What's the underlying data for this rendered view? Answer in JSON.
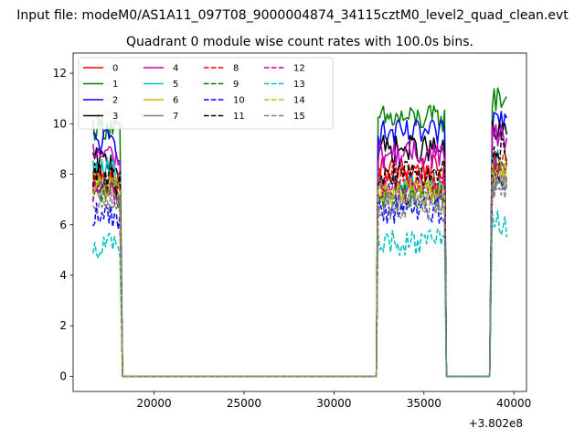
{
  "chart_data": {
    "type": "line",
    "suptitle": "Input file: modeM0/AS1A11_097T08_9000004874_34115cztM0_level2_quad_clean.evt",
    "title": "Quadrant 0 module wise count rates with 100.0s bins.",
    "xlabel": "",
    "ylabel": "",
    "x_offset_text": "+3.802e8",
    "xlim": [
      15500,
      40700
    ],
    "ylim": [
      -0.6,
      12.8
    ],
    "xticks": [
      20000,
      25000,
      30000,
      35000,
      40000
    ],
    "xtick_labels": [
      "20000",
      "25000",
      "30000",
      "35000",
      "40000"
    ],
    "yticks": [
      0,
      2,
      4,
      6,
      8,
      10,
      12
    ],
    "ytick_labels": [
      "0",
      "2",
      "4",
      "6",
      "8",
      "10",
      "12"
    ],
    "grid": false,
    "legend_placement": "upper-left",
    "legend_columns": 4,
    "x_segments": [
      [
        16600,
        18150
      ],
      [
        18250,
        32350
      ],
      [
        32450,
        36150
      ],
      [
        36250,
        38700
      ],
      [
        38800,
        39600
      ]
    ],
    "gap_levels": [
      0,
      0,
      0,
      0,
      0
    ],
    "series": [
      {
        "name": "0",
        "color": "#ff0000",
        "dash": "solid",
        "levels": [
          7.9,
          8.2,
          8.3
        ]
      },
      {
        "name": "1",
        "color": "#008000",
        "dash": "solid",
        "levels": [
          9.9,
          10.2,
          11.0
        ]
      },
      {
        "name": "2",
        "color": "#0000ff",
        "dash": "solid",
        "levels": [
          9.3,
          9.6,
          10.2
        ]
      },
      {
        "name": "3",
        "color": "#000000",
        "dash": "solid",
        "levels": [
          8.5,
          9.0,
          9.6
        ]
      },
      {
        "name": "4",
        "color": "#bf00bf",
        "dash": "solid",
        "levels": [
          8.8,
          8.8,
          9.5
        ]
      },
      {
        "name": "5",
        "color": "#00bfbf",
        "dash": "solid",
        "levels": [
          8.1,
          7.6,
          8.5
        ]
      },
      {
        "name": "6",
        "color": "#bfbf00",
        "dash": "solid",
        "levels": [
          7.6,
          7.4,
          8.0
        ]
      },
      {
        "name": "7",
        "color": "#808080",
        "dash": "solid",
        "levels": [
          7.2,
          7.1,
          7.7
        ]
      },
      {
        "name": "8",
        "color": "#ff0000",
        "dash": "dashed",
        "levels": [
          7.8,
          7.8,
          8.6
        ]
      },
      {
        "name": "9",
        "color": "#008000",
        "dash": "dashed",
        "levels": [
          7.4,
          7.2,
          7.9
        ]
      },
      {
        "name": "10",
        "color": "#0000ff",
        "dash": "dashed",
        "levels": [
          6.4,
          6.6,
          7.8
        ]
      },
      {
        "name": "11",
        "color": "#000000",
        "dash": "dashed",
        "levels": [
          7.9,
          8.0,
          8.9
        ]
      },
      {
        "name": "12",
        "color": "#bf00bf",
        "dash": "dashed",
        "levels": [
          7.3,
          7.5,
          8.2
        ]
      },
      {
        "name": "13",
        "color": "#00bfbf",
        "dash": "dashed",
        "levels": [
          5.2,
          5.3,
          6.0
        ]
      },
      {
        "name": "14",
        "color": "#bfbf00",
        "dash": "dashed",
        "levels": [
          7.5,
          7.3,
          8.1
        ]
      },
      {
        "name": "15",
        "color": "#808080",
        "dash": "dashed",
        "levels": [
          7.0,
          6.7,
          7.4
        ]
      }
    ]
  }
}
